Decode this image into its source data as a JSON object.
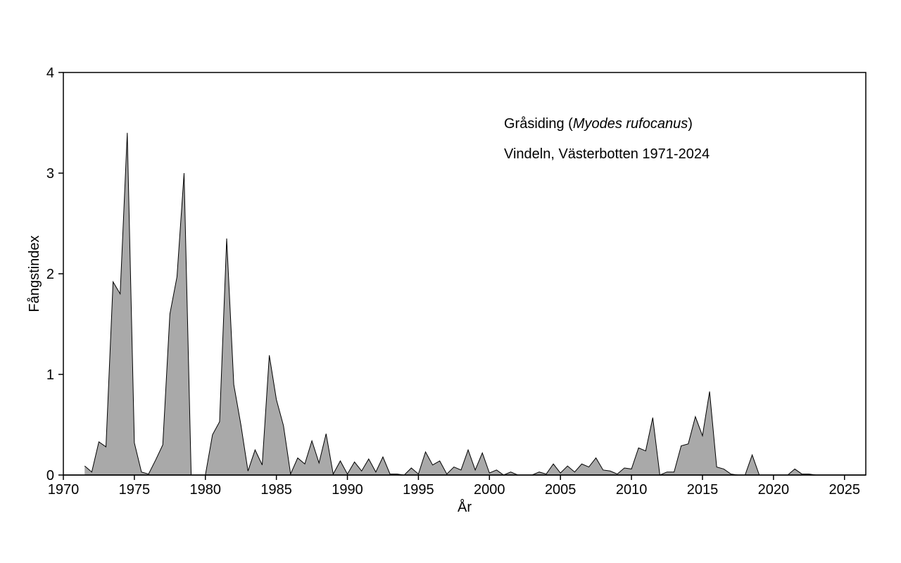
{
  "chart_data": {
    "type": "area",
    "title": "",
    "annotation": {
      "line1_prefix": "Gråsiding (",
      "line1_species": "Myodes rufocanus",
      "line1_suffix": ")",
      "line2": "Vindeln, Västerbotten 1971-2024"
    },
    "xlabel": "År",
    "ylabel": "Fångstindex",
    "xlim": [
      1970,
      2026.5
    ],
    "ylim": [
      0,
      4
    ],
    "xticks": [
      1970,
      1975,
      1980,
      1985,
      1990,
      1995,
      2000,
      2005,
      2010,
      2015,
      2020,
      2025
    ],
    "yticks": [
      0,
      1,
      2,
      3,
      4
    ],
    "grid": false,
    "colors": {
      "fill": "#a9a9a9",
      "line": "#000000",
      "axis": "#000000"
    },
    "series": [
      {
        "points": [
          [
            1971.5,
            0.09
          ],
          [
            1972.0,
            0.03
          ],
          [
            1972.5,
            0.33
          ],
          [
            1973.0,
            0.28
          ],
          [
            1973.5,
            1.92
          ],
          [
            1974.0,
            1.8
          ],
          [
            1974.5,
            3.4
          ],
          [
            1975.0,
            0.32
          ],
          [
            1975.5,
            0.03
          ],
          [
            1976.0,
            0.01
          ],
          [
            1976.5,
            0.15
          ],
          [
            1977.0,
            0.3
          ],
          [
            1977.5,
            1.6
          ],
          [
            1978.0,
            1.97
          ],
          [
            1978.5,
            3.0
          ],
          [
            1979.0,
            0.0
          ],
          [
            1979.5,
            0.0
          ],
          [
            1980.0,
            0.0
          ],
          [
            1980.5,
            0.4
          ],
          [
            1981.0,
            0.53
          ],
          [
            1981.5,
            2.35
          ],
          [
            1982.0,
            0.9
          ],
          [
            1982.5,
            0.5
          ],
          [
            1983.0,
            0.04
          ],
          [
            1983.5,
            0.25
          ],
          [
            1984.0,
            0.1
          ],
          [
            1984.5,
            1.19
          ],
          [
            1985.0,
            0.75
          ],
          [
            1985.5,
            0.49
          ],
          [
            1986.0,
            0.01
          ],
          [
            1986.5,
            0.17
          ],
          [
            1987.0,
            0.11
          ],
          [
            1987.5,
            0.34
          ],
          [
            1988.0,
            0.12
          ],
          [
            1988.5,
            0.41
          ],
          [
            1989.0,
            0.01
          ],
          [
            1989.5,
            0.14
          ],
          [
            1990.0,
            0.01
          ],
          [
            1990.5,
            0.13
          ],
          [
            1991.0,
            0.04
          ],
          [
            1991.5,
            0.16
          ],
          [
            1992.0,
            0.03
          ],
          [
            1992.5,
            0.18
          ],
          [
            1993.0,
            0.01
          ],
          [
            1993.5,
            0.01
          ],
          [
            1994.0,
            0.0
          ],
          [
            1994.5,
            0.07
          ],
          [
            1995.0,
            0.01
          ],
          [
            1995.5,
            0.23
          ],
          [
            1996.0,
            0.1
          ],
          [
            1996.5,
            0.14
          ],
          [
            1997.0,
            0.01
          ],
          [
            1997.5,
            0.08
          ],
          [
            1998.0,
            0.05
          ],
          [
            1998.5,
            0.25
          ],
          [
            1999.0,
            0.05
          ],
          [
            1999.5,
            0.22
          ],
          [
            2000.0,
            0.02
          ],
          [
            2000.5,
            0.05
          ],
          [
            2001.0,
            0.0
          ],
          [
            2001.5,
            0.03
          ],
          [
            2002.0,
            0.0
          ],
          [
            2002.5,
            0.0
          ],
          [
            2003.0,
            0.0
          ],
          [
            2003.5,
            0.03
          ],
          [
            2004.0,
            0.01
          ],
          [
            2004.5,
            0.11
          ],
          [
            2005.0,
            0.02
          ],
          [
            2005.5,
            0.09
          ],
          [
            2006.0,
            0.03
          ],
          [
            2006.5,
            0.11
          ],
          [
            2007.0,
            0.08
          ],
          [
            2007.5,
            0.17
          ],
          [
            2008.0,
            0.05
          ],
          [
            2008.5,
            0.04
          ],
          [
            2009.0,
            0.01
          ],
          [
            2009.5,
            0.07
          ],
          [
            2010.0,
            0.06
          ],
          [
            2010.5,
            0.27
          ],
          [
            2011.0,
            0.24
          ],
          [
            2011.5,
            0.57
          ],
          [
            2012.0,
            0.0
          ],
          [
            2012.5,
            0.03
          ],
          [
            2013.0,
            0.03
          ],
          [
            2013.5,
            0.29
          ],
          [
            2014.0,
            0.31
          ],
          [
            2014.5,
            0.58
          ],
          [
            2015.0,
            0.39
          ],
          [
            2015.5,
            0.83
          ],
          [
            2016.0,
            0.08
          ],
          [
            2016.5,
            0.06
          ],
          [
            2017.0,
            0.01
          ],
          [
            2017.5,
            0.0
          ],
          [
            2018.0,
            0.0
          ],
          [
            2018.5,
            0.2
          ],
          [
            2019.0,
            0.0
          ],
          [
            2019.5,
            0.0
          ],
          [
            2020.0,
            0.0
          ],
          [
            2020.5,
            0.0
          ],
          [
            2021.0,
            0.0
          ],
          [
            2021.5,
            0.06
          ],
          [
            2022.0,
            0.01
          ],
          [
            2022.5,
            0.01
          ],
          [
            2023.0,
            0.0
          ],
          [
            2023.5,
            0.0
          ],
          [
            2024.0,
            0.0
          ],
          [
            2024.5,
            0.0
          ]
        ]
      }
    ]
  }
}
